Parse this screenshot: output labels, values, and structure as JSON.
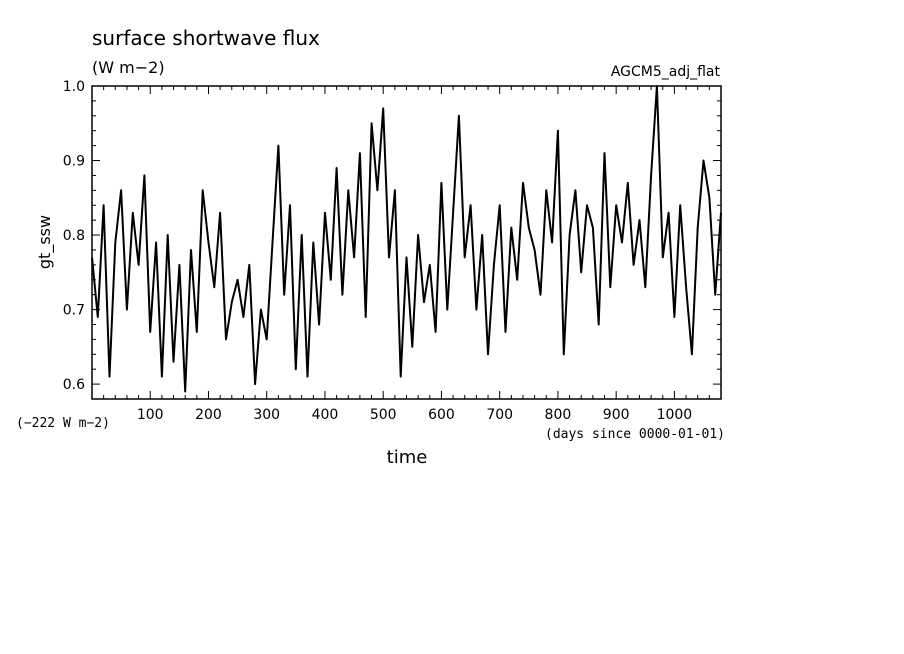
{
  "chart_data": {
    "type": "line",
    "title": "surface shortwave flux",
    "subtitle": "(W m−2)",
    "run_label": "AGCM5_adj_flat",
    "xlabel": "time",
    "ylabel": "gt_ssw",
    "x_unit": "(days since 0000-01-01)",
    "y_offset_note": "(−222 W m−2)",
    "xlim": [
      0,
      1080
    ],
    "ylim": [
      0.58,
      1.0
    ],
    "xticks": [
      100,
      200,
      300,
      400,
      500,
      600,
      700,
      800,
      900,
      1000
    ],
    "yticks": [
      0.6,
      0.7,
      0.8,
      0.9,
      1.0
    ],
    "ytick_labels": [
      "0.6",
      "0.7",
      "0.8",
      "0.9",
      "1.0"
    ],
    "grid": false,
    "series": [
      {
        "x": [
          0,
          10,
          20,
          30,
          40,
          50,
          60,
          70,
          80,
          90,
          100,
          110,
          120,
          130,
          140,
          150,
          160,
          170,
          180,
          190,
          200,
          210,
          220,
          230,
          240,
          250,
          260,
          270,
          280,
          290,
          300,
          310,
          320,
          330,
          340,
          350,
          360,
          370,
          380,
          390,
          400,
          410,
          420,
          430,
          440,
          450,
          460,
          470,
          480,
          490,
          500,
          510,
          520,
          530,
          540,
          550,
          560,
          570,
          580,
          590,
          600,
          610,
          620,
          630,
          640,
          650,
          660,
          670,
          680,
          690,
          700,
          710,
          720,
          730,
          740,
          750,
          760,
          770,
          780,
          790,
          800,
          810,
          820,
          830,
          840,
          850,
          860,
          870,
          880,
          890,
          900,
          910,
          920,
          930,
          940,
          950,
          960,
          970,
          980,
          990,
          1000,
          1010,
          1020,
          1030,
          1040,
          1050,
          1060,
          1070,
          1080
        ],
        "y": [
          0.77,
          0.69,
          0.84,
          0.61,
          0.79,
          0.86,
          0.7,
          0.83,
          0.76,
          0.88,
          0.67,
          0.79,
          0.61,
          0.8,
          0.63,
          0.76,
          0.59,
          0.78,
          0.67,
          0.86,
          0.79,
          0.73,
          0.83,
          0.66,
          0.71,
          0.74,
          0.69,
          0.76,
          0.6,
          0.7,
          0.66,
          0.79,
          0.92,
          0.72,
          0.84,
          0.62,
          0.8,
          0.61,
          0.79,
          0.68,
          0.83,
          0.74,
          0.89,
          0.72,
          0.86,
          0.77,
          0.91,
          0.69,
          0.95,
          0.86,
          0.97,
          0.77,
          0.86,
          0.61,
          0.77,
          0.65,
          0.8,
          0.71,
          0.76,
          0.67,
          0.87,
          0.7,
          0.83,
          0.96,
          0.77,
          0.84,
          0.7,
          0.8,
          0.64,
          0.76,
          0.84,
          0.67,
          0.81,
          0.74,
          0.87,
          0.81,
          0.78,
          0.72,
          0.86,
          0.79,
          0.94,
          0.64,
          0.8,
          0.86,
          0.75,
          0.84,
          0.81,
          0.68,
          0.91,
          0.73,
          0.84,
          0.79,
          0.87,
          0.76,
          0.82,
          0.73,
          0.88,
          1.0,
          0.77,
          0.83,
          0.69,
          0.84,
          0.73,
          0.64,
          0.81,
          0.9,
          0.85,
          0.72,
          0.83
        ]
      }
    ],
    "line_color": "#000000"
  }
}
